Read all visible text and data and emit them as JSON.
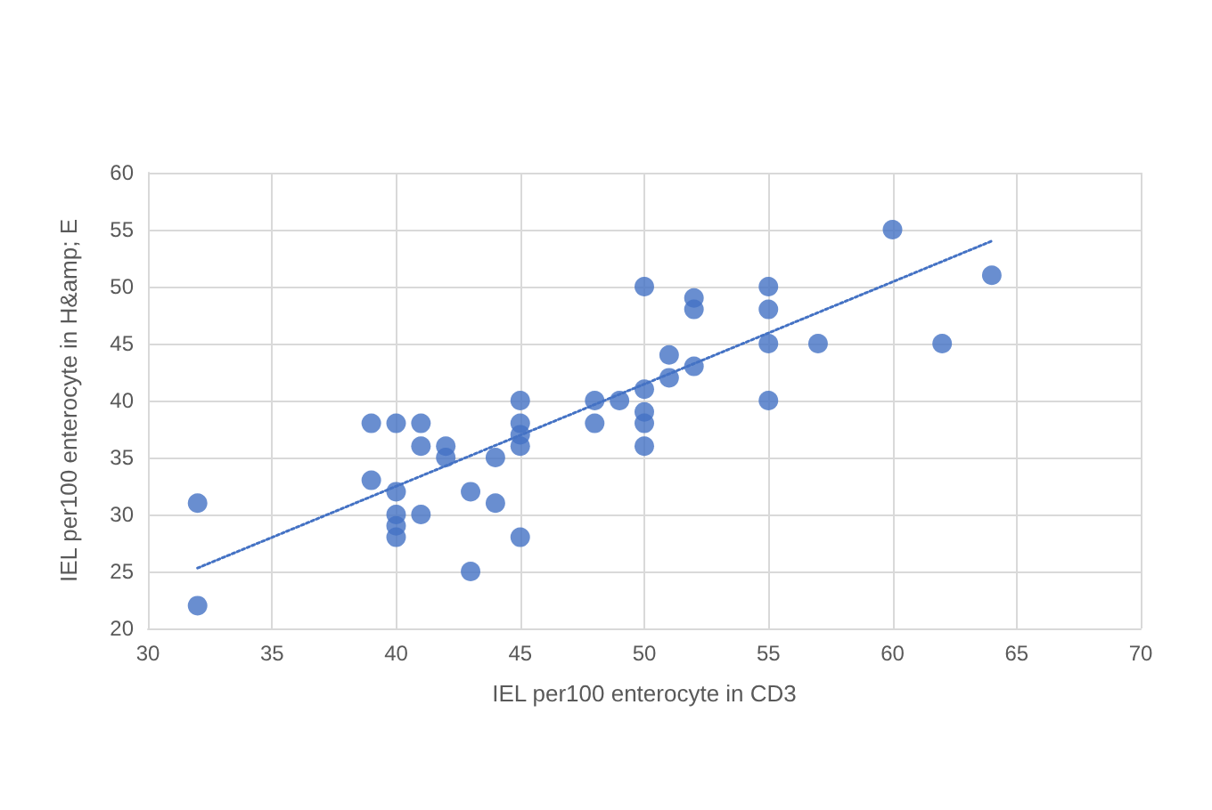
{
  "chart_data": {
    "type": "scatter",
    "xlabel": "IEL per100 enterocyte in CD3",
    "ylabel": "IEL per100 enterocyte in H&amp; E",
    "xlim": [
      30,
      70
    ],
    "xticks": [
      30,
      35,
      40,
      45,
      50,
      55,
      60,
      65,
      70
    ],
    "ylim": [
      20,
      60
    ],
    "yticks": [
      20,
      25,
      30,
      35,
      40,
      45,
      50,
      55,
      60
    ],
    "grid": true,
    "marker": "circle",
    "series": [
      {
        "color": "#4472c4",
        "x": [
          32,
          32,
          39,
          39,
          40,
          40,
          40,
          40,
          40,
          41,
          41,
          41,
          42,
          42,
          43,
          43,
          44,
          44,
          45,
          45,
          45,
          45,
          45,
          48,
          48,
          49,
          50,
          50,
          50,
          50,
          50,
          51,
          51,
          52,
          52,
          52,
          55,
          55,
          55,
          55,
          57,
          60,
          62,
          64
        ],
        "values": [
          31,
          22,
          38,
          33,
          38,
          32,
          30,
          29,
          28,
          38,
          36,
          30,
          36,
          35,
          32,
          25,
          35,
          31,
          40,
          38,
          37,
          36,
          28,
          40,
          38,
          40,
          50,
          41,
          39,
          38,
          36,
          44,
          42,
          49,
          48,
          43,
          50,
          48,
          45,
          40,
          45,
          55,
          45,
          51
        ]
      },
      {
        "type": "line",
        "color": "#4472c4",
        "line_style": "dotted",
        "marker": "none",
        "x": [
          32,
          64
        ],
        "values": [
          25.3,
          54
        ]
      }
    ]
  }
}
